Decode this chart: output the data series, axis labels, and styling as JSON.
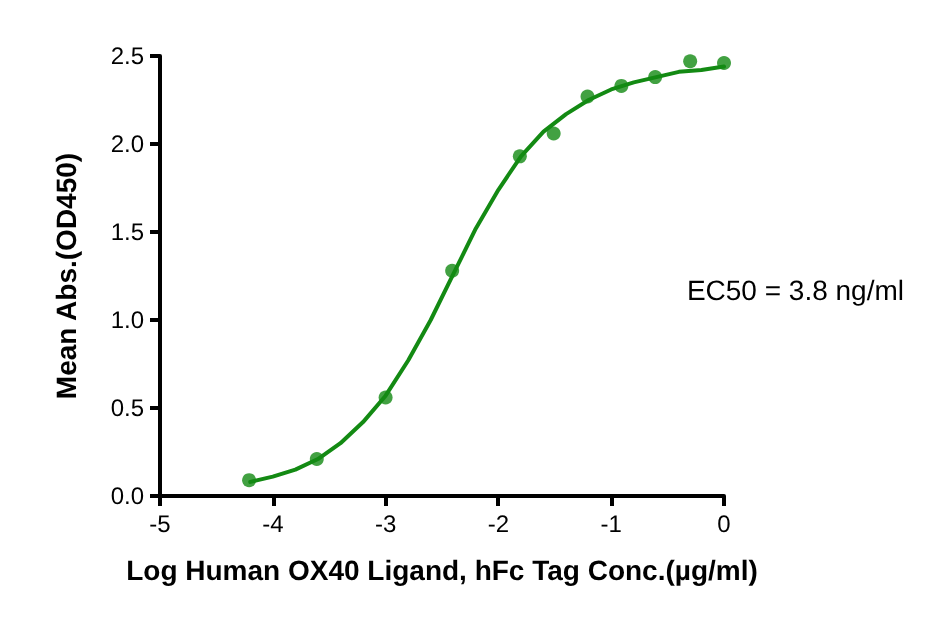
{
  "chart_data": {
    "type": "scatter",
    "xlabel": "Log Human OX40 Ligand, hFc Tag Conc.(µg/ml)",
    "ylabel": "Mean Abs.(OD450)",
    "annotations": [
      "EC50 = 3.8 ng/ml"
    ],
    "series": [
      {
        "color": "#138a13",
        "marker": "circle",
        "x": [
          -4.21,
          -3.61,
          -3.0,
          -2.41,
          -1.81,
          -1.51,
          -1.21,
          -0.91,
          -0.61,
          -0.3,
          0
        ],
        "values": [
          0.09,
          0.21,
          0.56,
          1.28,
          1.93,
          2.06,
          2.27,
          2.33,
          2.38,
          2.47,
          2.46
        ]
      },
      {
        "type": "line",
        "color": "#138a13",
        "marker": "none",
        "line_style": "solid",
        "x": [
          -4.2,
          -4.0,
          -3.8,
          -3.6,
          -3.4,
          -3.2,
          -3.0,
          -2.8,
          -2.6,
          -2.4,
          -2.2,
          -2.0,
          -1.8,
          -1.6,
          -1.4,
          -1.2,
          -1.0,
          -0.8,
          -0.6,
          -0.4,
          -0.2,
          0
        ],
        "values": [
          0.08,
          0.11,
          0.15,
          0.21,
          0.3,
          0.42,
          0.57,
          0.77,
          1.0,
          1.26,
          1.52,
          1.74,
          1.93,
          2.07,
          2.17,
          2.25,
          2.31,
          2.35,
          2.38,
          2.41,
          2.42,
          2.44
        ]
      }
    ],
    "xlim": [
      -5,
      0
    ],
    "xticks": [
      -5,
      -4,
      -3,
      -2,
      -1,
      0
    ],
    "ylim": [
      0,
      2.5
    ],
    "yticks": [
      {
        "value": 0,
        "label": "0.0"
      },
      {
        "value": 0.5,
        "label": "0.5"
      },
      {
        "value": 1,
        "label": "1.0"
      },
      {
        "value": 1.5,
        "label": "1.5"
      },
      {
        "value": 2,
        "label": "2.0"
      },
      {
        "value": 2.5,
        "label": "2.5"
      }
    ],
    "grid": false
  }
}
